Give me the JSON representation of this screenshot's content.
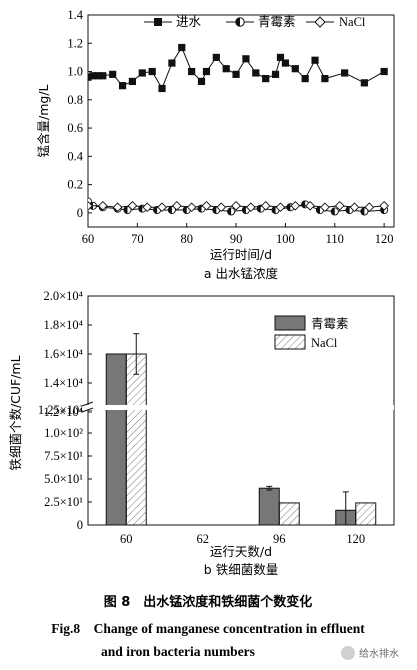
{
  "chart_data": [
    {
      "type": "line",
      "xlabel": "运行时间/d",
      "ylabel": "锰含量/mg/L",
      "subtitle": "a 出水锰浓度",
      "xlim": [
        60,
        122
      ],
      "ylim": [
        -0.1,
        1.4
      ],
      "xticks": [
        "60",
        "70",
        "80",
        "90",
        "100",
        "110",
        "120"
      ],
      "yticks": [
        "0",
        "0.2",
        "0.4",
        "0.6",
        "0.8",
        "1.0",
        "1.2",
        "1.4"
      ],
      "legend_position": "top",
      "series": [
        {
          "name": "进水",
          "marker": "square-filled",
          "x": [
            60,
            61,
            62,
            63,
            65,
            67,
            69,
            71,
            73,
            75,
            77,
            79,
            81,
            83,
            84,
            86,
            88,
            90,
            92,
            94,
            96,
            98,
            99,
            100,
            102,
            104,
            106,
            108,
            112,
            116,
            120
          ],
          "y": [
            0.96,
            0.97,
            0.97,
            0.97,
            0.98,
            0.9,
            0.93,
            0.99,
            1.0,
            0.88,
            1.06,
            1.17,
            1.0,
            0.93,
            1.0,
            1.1,
            1.02,
            0.98,
            1.09,
            0.99,
            0.95,
            0.98,
            1.1,
            1.06,
            1.02,
            0.95,
            1.08,
            0.95,
            0.99,
            0.92,
            1.0
          ]
        },
        {
          "name": "青霉素",
          "marker": "circle-half",
          "x": [
            60,
            61,
            63,
            66,
            68,
            71,
            74,
            77,
            80,
            83,
            86,
            89,
            92,
            95,
            98,
            101,
            104,
            107,
            110,
            113,
            116,
            120
          ],
          "y": [
            0.08,
            0.05,
            0.04,
            0.03,
            0.02,
            0.03,
            0.02,
            0.02,
            0.02,
            0.03,
            0.02,
            0.01,
            0.02,
            0.03,
            0.02,
            0.04,
            0.06,
            0.02,
            0.01,
            0.02,
            0.01,
            0.02
          ]
        },
        {
          "name": "NaCl",
          "marker": "diamond-open",
          "x": [
            60,
            63,
            66,
            69,
            72,
            75,
            78,
            81,
            84,
            87,
            90,
            93,
            96,
            99,
            102,
            105,
            108,
            111,
            114,
            117,
            120
          ],
          "y": [
            0.05,
            0.05,
            0.04,
            0.05,
            0.04,
            0.04,
            0.05,
            0.04,
            0.05,
            0.04,
            0.05,
            0.04,
            0.05,
            0.04,
            0.05,
            0.05,
            0.04,
            0.05,
            0.04,
            0.04,
            0.05
          ]
        }
      ]
    },
    {
      "type": "bar",
      "xlabel": "运行天数/d",
      "ylabel": "铁细菌个数/CUF/mL",
      "subtitle": "b 铁细菌数量",
      "categories": [
        "60",
        "62",
        "96",
        "120"
      ],
      "axis_break": true,
      "yticks_lower": [
        "0",
        "2.5×10¹",
        "5.0×10¹",
        "7.5×10¹",
        "1.0×10²",
        "1.25×10²"
      ],
      "yticks_upper": [
        "1.2×10⁴",
        "1.4×10⁴",
        "1.6×10⁴",
        "1.8×10⁴",
        "2.0×10⁴"
      ],
      "legend_position": "top-right",
      "series": [
        {
          "name": "青霉素",
          "color": "#777777",
          "values": [
            16000,
            0,
            40,
            16
          ],
          "errors": [
            0,
            0,
            2,
            20
          ]
        },
        {
          "name": "NaCl",
          "color": "#ffffff",
          "values": [
            16000,
            0,
            24,
            24
          ],
          "errors": [
            1400,
            0,
            0,
            0
          ]
        }
      ]
    }
  ],
  "caption": {
    "cn": "图 8　出水锰浓度和铁细菌个数变化",
    "en_line1": "Fig.8　Change of manganese concentration in effluent",
    "en_line2": "and iron bacteria numbers"
  },
  "watermark": "给水排水"
}
